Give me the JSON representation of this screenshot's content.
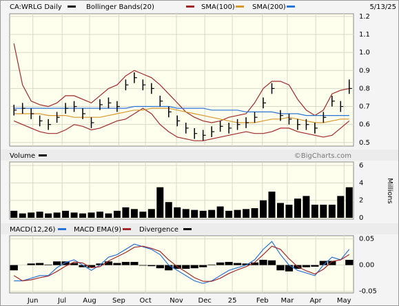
{
  "chart_data": [
    {
      "type": "ohlc",
      "title": "CA:WRLG Daily",
      "date": "5/13/25",
      "color": "#000000",
      "x": [
        0,
        1,
        2,
        3,
        4,
        5,
        6,
        7,
        8,
        9,
        10,
        11,
        12,
        13,
        14,
        15,
        16,
        17,
        18,
        19,
        20,
        21,
        22,
        23,
        24,
        25,
        26,
        27,
        28,
        29,
        30,
        31,
        32,
        33,
        34,
        35,
        36,
        37,
        38,
        39
      ],
      "high": [
        0.71,
        0.72,
        0.69,
        0.65,
        0.63,
        0.67,
        0.72,
        0.73,
        0.69,
        0.64,
        0.74,
        0.75,
        0.73,
        0.85,
        0.89,
        0.85,
        0.83,
        0.76,
        0.7,
        0.65,
        0.61,
        0.58,
        0.57,
        0.59,
        0.62,
        0.61,
        0.63,
        0.64,
        0.67,
        0.75,
        0.83,
        0.68,
        0.66,
        0.63,
        0.63,
        0.61,
        0.67,
        0.76,
        0.73,
        0.85
      ],
      "low": [
        0.65,
        0.66,
        0.63,
        0.59,
        0.57,
        0.61,
        0.66,
        0.67,
        0.63,
        0.58,
        0.68,
        0.69,
        0.67,
        0.79,
        0.83,
        0.79,
        0.77,
        0.7,
        0.64,
        0.59,
        0.55,
        0.52,
        0.51,
        0.53,
        0.56,
        0.55,
        0.57,
        0.58,
        0.61,
        0.69,
        0.77,
        0.62,
        0.6,
        0.57,
        0.57,
        0.55,
        0.61,
        0.7,
        0.67,
        0.77
      ],
      "close": [
        0.68,
        0.69,
        0.66,
        0.62,
        0.6,
        0.64,
        0.69,
        0.7,
        0.66,
        0.61,
        0.71,
        0.72,
        0.7,
        0.82,
        0.86,
        0.82,
        0.8,
        0.73,
        0.67,
        0.62,
        0.58,
        0.55,
        0.54,
        0.56,
        0.59,
        0.58,
        0.6,
        0.61,
        0.64,
        0.72,
        0.8,
        0.65,
        0.63,
        0.6,
        0.6,
        0.58,
        0.64,
        0.73,
        0.7,
        0.8
      ],
      "series": [
        {
          "name": "Bollinger Bands(20)",
          "color": "#a0282a",
          "upper": [
            1.05,
            0.82,
            0.73,
            0.71,
            0.7,
            0.72,
            0.76,
            0.76,
            0.74,
            0.72,
            0.76,
            0.8,
            0.82,
            0.87,
            0.9,
            0.88,
            0.86,
            0.82,
            0.77,
            0.72,
            0.67,
            0.64,
            0.62,
            0.61,
            0.62,
            0.64,
            0.65,
            0.66,
            0.72,
            0.8,
            0.84,
            0.84,
            0.82,
            0.74,
            0.68,
            0.65,
            0.68,
            0.77,
            0.79,
            0.8
          ],
          "lower": [
            0.62,
            0.6,
            0.58,
            0.56,
            0.55,
            0.55,
            0.57,
            0.6,
            0.59,
            0.57,
            0.58,
            0.6,
            0.62,
            0.63,
            0.66,
            0.69,
            0.66,
            0.6,
            0.56,
            0.53,
            0.52,
            0.51,
            0.51,
            0.52,
            0.53,
            0.54,
            0.55,
            0.56,
            0.55,
            0.55,
            0.56,
            0.58,
            0.58,
            0.56,
            0.55,
            0.54,
            0.53,
            0.54,
            0.58,
            0.62
          ]
        },
        {
          "name": "SMA(100)",
          "color": "#d9962b",
          "values": [
            0.66,
            0.66,
            0.66,
            0.66,
            0.65,
            0.65,
            0.65,
            0.64,
            0.64,
            0.64,
            0.64,
            0.65,
            0.66,
            0.67,
            0.68,
            0.68,
            0.69,
            0.69,
            0.69,
            0.68,
            0.67,
            0.66,
            0.65,
            0.64,
            0.63,
            0.62,
            0.61,
            0.61,
            0.61,
            0.62,
            0.63,
            0.63,
            0.64,
            0.63,
            0.62,
            0.61,
            0.61,
            0.62,
            0.63,
            0.63
          ]
        },
        {
          "name": "SMA(200)",
          "color": "#2a73d6",
          "values": [
            0.69,
            0.69,
            0.69,
            0.69,
            0.69,
            0.69,
            0.69,
            0.69,
            0.69,
            0.69,
            0.69,
            0.69,
            0.69,
            0.69,
            0.7,
            0.7,
            0.7,
            0.7,
            0.7,
            0.69,
            0.69,
            0.69,
            0.69,
            0.68,
            0.68,
            0.68,
            0.68,
            0.67,
            0.67,
            0.67,
            0.67,
            0.66,
            0.66,
            0.66,
            0.65,
            0.65,
            0.65,
            0.65,
            0.65,
            0.65
          ]
        }
      ],
      "ylim": [
        0.48,
        1.215
      ],
      "yticks": [
        0.5,
        0.6,
        0.7,
        0.8,
        0.9,
        {
          "value": 1,
          "label": "1.0"
        },
        1.1,
        1.2
      ]
    },
    {
      "type": "bar",
      "title": "Volume",
      "ylabel": "Millions",
      "watermark": "©BigCharts.com",
      "color": "#000000",
      "values": [
        0.8,
        0.5,
        0.6,
        0.7,
        0.5,
        0.6,
        0.8,
        0.6,
        0.5,
        0.6,
        0.7,
        0.5,
        0.8,
        1.2,
        1.0,
        0.7,
        1.0,
        3.5,
        1.8,
        1.2,
        1.0,
        0.9,
        0.8,
        0.9,
        1.3,
        0.8,
        0.9,
        1.0,
        1.1,
        2.0,
        3.0,
        1.7,
        1.5,
        2.2,
        2.5,
        1.5,
        1.5,
        1.5,
        2.5,
        3.5
      ],
      "ylim": [
        0,
        6.4
      ],
      "yticks": [
        0,
        2,
        4,
        6
      ]
    },
    {
      "type": "macd",
      "series": [
        {
          "name": "MACD(12,26)",
          "color": "#2a73d6",
          "values": [
            -0.03,
            -0.03,
            -0.025,
            -0.02,
            -0.02,
            -0.005,
            0.005,
            0.01,
            0.0,
            -0.01,
            0.0,
            0.015,
            0.02,
            0.03,
            0.04,
            0.035,
            0.03,
            0.02,
            0.0,
            -0.01,
            -0.02,
            -0.03,
            -0.035,
            -0.03,
            -0.02,
            -0.01,
            -0.005,
            0.0,
            0.01,
            0.03,
            0.045,
            0.02,
            0.0,
            -0.01,
            -0.015,
            -0.02,
            0.0,
            0.015,
            0.01,
            0.03
          ]
        },
        {
          "name": "MACD EMA(9)",
          "color": "#a0282a",
          "values": [
            -0.02,
            -0.03,
            -0.028,
            -0.024,
            -0.021,
            -0.012,
            -0.002,
            0.006,
            0.004,
            -0.005,
            -0.003,
            0.008,
            0.016,
            0.024,
            0.034,
            0.036,
            0.032,
            0.026,
            0.01,
            -0.003,
            -0.013,
            -0.024,
            -0.031,
            -0.031,
            -0.025,
            -0.016,
            -0.009,
            -0.003,
            0.005,
            0.02,
            0.036,
            0.03,
            0.012,
            -0.003,
            -0.011,
            -0.017,
            -0.008,
            0.007,
            0.01,
            0.02
          ]
        },
        {
          "name": "Divergence",
          "color": "#000000",
          "values": [
            -0.01,
            0,
            0.003,
            0.004,
            0.001,
            0.007,
            0.007,
            0.004,
            -0.004,
            -0.005,
            0.003,
            0.007,
            0.004,
            0.006,
            0.006,
            -0.001,
            -0.002,
            -0.006,
            -0.01,
            -0.007,
            -0.007,
            -0.006,
            -0.004,
            0.001,
            0.005,
            0.006,
            0.004,
            0.003,
            0.005,
            0.01,
            0.009,
            -0.01,
            -0.012,
            -0.007,
            -0.004,
            -0.003,
            0.008,
            0.008,
            0,
            0.01
          ]
        }
      ],
      "ylim": [
        -0.053,
        0.056
      ],
      "yticks": [
        0.05,
        {
          "value": 0,
          "label": "0.00"
        },
        -0.05
      ],
      "xlim": [
        -0.5,
        39.5
      ],
      "xticks": [
        {
          "value": 2.2,
          "label": "Jun"
        },
        {
          "value": 5.6,
          "label": "Jul"
        },
        {
          "value": 8.8,
          "label": "Aug"
        },
        {
          "value": 12.2,
          "label": "Sep"
        },
        {
          "value": 15.3,
          "label": "Oct"
        },
        {
          "value": 18.9,
          "label": "Nov"
        },
        {
          "value": 22.2,
          "label": "Dec"
        },
        {
          "value": 25.4,
          "label": "25"
        },
        {
          "value": 28.9,
          "label": "Feb"
        },
        {
          "value": 31.8,
          "label": "Mar"
        },
        {
          "value": 35.1,
          "label": "Apr"
        },
        {
          "value": 38.4,
          "label": "May"
        }
      ]
    }
  ]
}
